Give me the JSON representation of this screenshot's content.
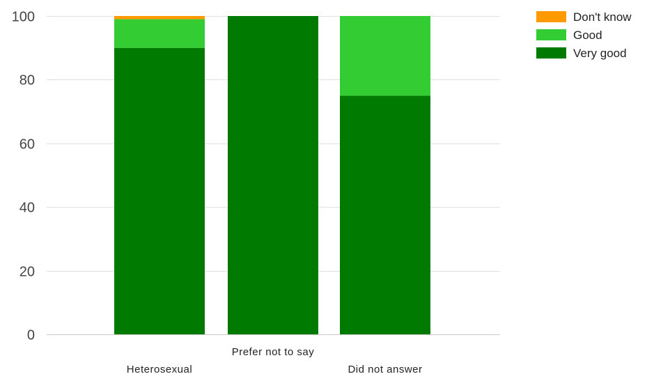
{
  "chart_data": {
    "type": "bar",
    "stacked": true,
    "categories": [
      "Heterosexual",
      "Prefer not to say",
      "Did not answer"
    ],
    "series": [
      {
        "name": "Very good",
        "color": "#007a00",
        "values": [
          90,
          100,
          75
        ]
      },
      {
        "name": "Good",
        "color": "#33cc33",
        "values": [
          9,
          0,
          25
        ]
      },
      {
        "name": "Don't know",
        "color": "#ff9900",
        "values": [
          1,
          0,
          0
        ]
      }
    ],
    "legend_order": [
      "Don't know",
      "Good",
      "Very good"
    ],
    "legend_position": "top-right",
    "ylim": [
      0,
      100
    ],
    "yticks": [
      "0",
      "20",
      "40",
      "60",
      "80",
      "100"
    ],
    "grid": true,
    "xlabel": "",
    "ylabel": "",
    "title": ""
  }
}
